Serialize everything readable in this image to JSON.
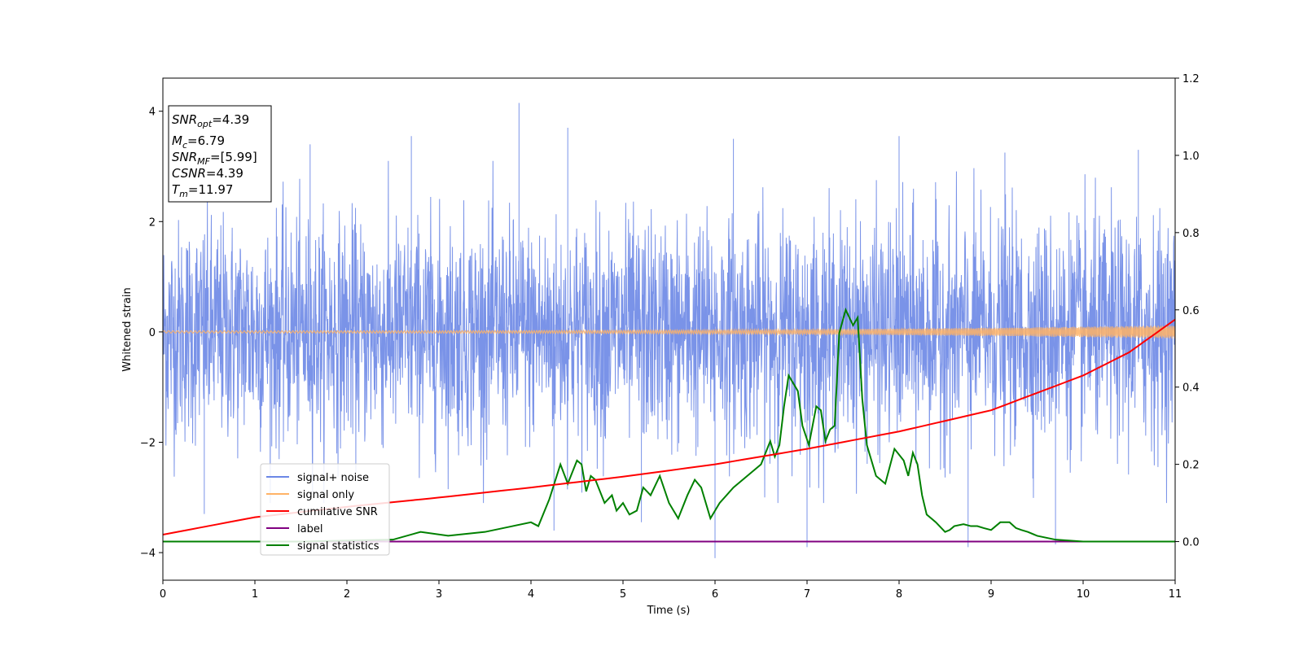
{
  "chart_data": {
    "type": "line",
    "xlabel": "Time (s)",
    "ylabel": "Whitened strain",
    "xlim": [
      0,
      11
    ],
    "ylim": [
      -4.5,
      4.6
    ],
    "y2lim": [
      -0.1,
      1.2
    ],
    "xticks": [
      0,
      1,
      2,
      3,
      4,
      5,
      6,
      7,
      8,
      9,
      10,
      11
    ],
    "yticks": [
      -4,
      -2,
      0,
      2,
      4
    ],
    "y2ticks": [
      0.0,
      0.2,
      0.4,
      0.6,
      0.8,
      1.0,
      1.2
    ],
    "grid": false,
    "legend_position": "lower-left",
    "stats_box": {
      "snr_opt": {
        "sym": "SNR",
        "sub": "opt",
        "value": "=4.39"
      },
      "mc": {
        "sym": "M",
        "sub": "c",
        "value": "=6.79"
      },
      "snr_mf": {
        "sym": "SNR",
        "sub": "MF",
        "value": "=[5.99]"
      },
      "csnr": {
        "sym": "CSNR",
        "value": "=4.39"
      },
      "tm": {
        "sym": "T",
        "sub": "m",
        "value": "=11.97"
      }
    },
    "series": [
      {
        "name": "signal+ noise",
        "axis": "left",
        "color": "#6b87e6",
        "description": "dense whitened noise, roughly within ±2.3 with spikes",
        "noise_sigma": 1.0,
        "spikes": [
          {
            "x": 3.87,
            "y": 4.15
          },
          {
            "x": 6.0,
            "y": -4.1
          },
          {
            "x": 1.6,
            "y": 3.4
          },
          {
            "x": 8.0,
            "y": 3.55
          },
          {
            "x": 0.45,
            "y": -3.3
          },
          {
            "x": 4.25,
            "y": -3.6
          },
          {
            "x": 9.7,
            "y": -3.85
          },
          {
            "x": 7.0,
            "y": -3.9
          },
          {
            "x": 4.4,
            "y": 3.7
          },
          {
            "x": 2.7,
            "y": 3.55
          },
          {
            "x": 10.6,
            "y": 3.3
          },
          {
            "x": 5.2,
            "y": -3.45
          },
          {
            "x": 8.75,
            "y": -3.9
          },
          {
            "x": 6.2,
            "y": 3.5
          },
          {
            "x": 9.15,
            "y": 3.25
          }
        ]
      },
      {
        "name": "signal only",
        "axis": "left",
        "color": "#ffb366",
        "description": "chirp with amplitude growing toward the end",
        "amplitude_start": 0.02,
        "amplitude_end": 0.12
      },
      {
        "name": "cumilative SNR",
        "axis": "right",
        "color": "#ff0000",
        "x": [
          0,
          1,
          2,
          3,
          4,
          5,
          6,
          7,
          8,
          9,
          10,
          10.5,
          11
        ],
        "y": [
          0.018,
          0.063,
          0.09,
          0.114,
          0.14,
          0.168,
          0.2,
          0.24,
          0.285,
          0.34,
          0.43,
          0.49,
          0.575
        ]
      },
      {
        "name": "label",
        "axis": "right",
        "color": "#800080",
        "x": [
          0,
          11
        ],
        "y": [
          0.0,
          0.0
        ]
      },
      {
        "name": "signal statistics",
        "axis": "right",
        "color": "#008000",
        "x": [
          0,
          1.5,
          2.5,
          2.8,
          3.1,
          3.5,
          3.8,
          4.0,
          4.08,
          4.2,
          4.32,
          4.4,
          4.5,
          4.55,
          4.6,
          4.65,
          4.7,
          4.8,
          4.88,
          4.93,
          5.0,
          5.07,
          5.15,
          5.22,
          5.3,
          5.4,
          5.5,
          5.6,
          5.7,
          5.78,
          5.85,
          5.95,
          6.05,
          6.2,
          6.4,
          6.5,
          6.6,
          6.65,
          6.7,
          6.75,
          6.8,
          6.9,
          6.95,
          7.02,
          7.1,
          7.15,
          7.2,
          7.25,
          7.3,
          7.35,
          7.42,
          7.5,
          7.55,
          7.6,
          7.65,
          7.75,
          7.85,
          7.95,
          8.05,
          8.1,
          8.15,
          8.2,
          8.25,
          8.3,
          8.4,
          8.5,
          8.55,
          8.6,
          8.7,
          8.78,
          8.85,
          8.92,
          9.0,
          9.1,
          9.2,
          9.27,
          9.33,
          9.4,
          9.5,
          9.7,
          10.0,
          10.2,
          11.0
        ],
        "y": [
          0.0,
          0.0,
          0.005,
          0.025,
          0.015,
          0.025,
          0.04,
          0.05,
          0.04,
          0.11,
          0.2,
          0.15,
          0.21,
          0.2,
          0.13,
          0.17,
          0.16,
          0.1,
          0.12,
          0.08,
          0.1,
          0.07,
          0.08,
          0.14,
          0.12,
          0.17,
          0.1,
          0.06,
          0.12,
          0.16,
          0.14,
          0.06,
          0.1,
          0.14,
          0.18,
          0.2,
          0.26,
          0.22,
          0.25,
          0.35,
          0.43,
          0.39,
          0.3,
          0.25,
          0.35,
          0.34,
          0.26,
          0.29,
          0.3,
          0.54,
          0.6,
          0.56,
          0.58,
          0.37,
          0.25,
          0.17,
          0.15,
          0.24,
          0.21,
          0.17,
          0.23,
          0.2,
          0.12,
          0.07,
          0.05,
          0.025,
          0.03,
          0.04,
          0.045,
          0.04,
          0.04,
          0.035,
          0.03,
          0.05,
          0.05,
          0.035,
          0.03,
          0.025,
          0.015,
          0.005,
          0.0,
          0.0,
          0.0
        ]
      }
    ]
  }
}
